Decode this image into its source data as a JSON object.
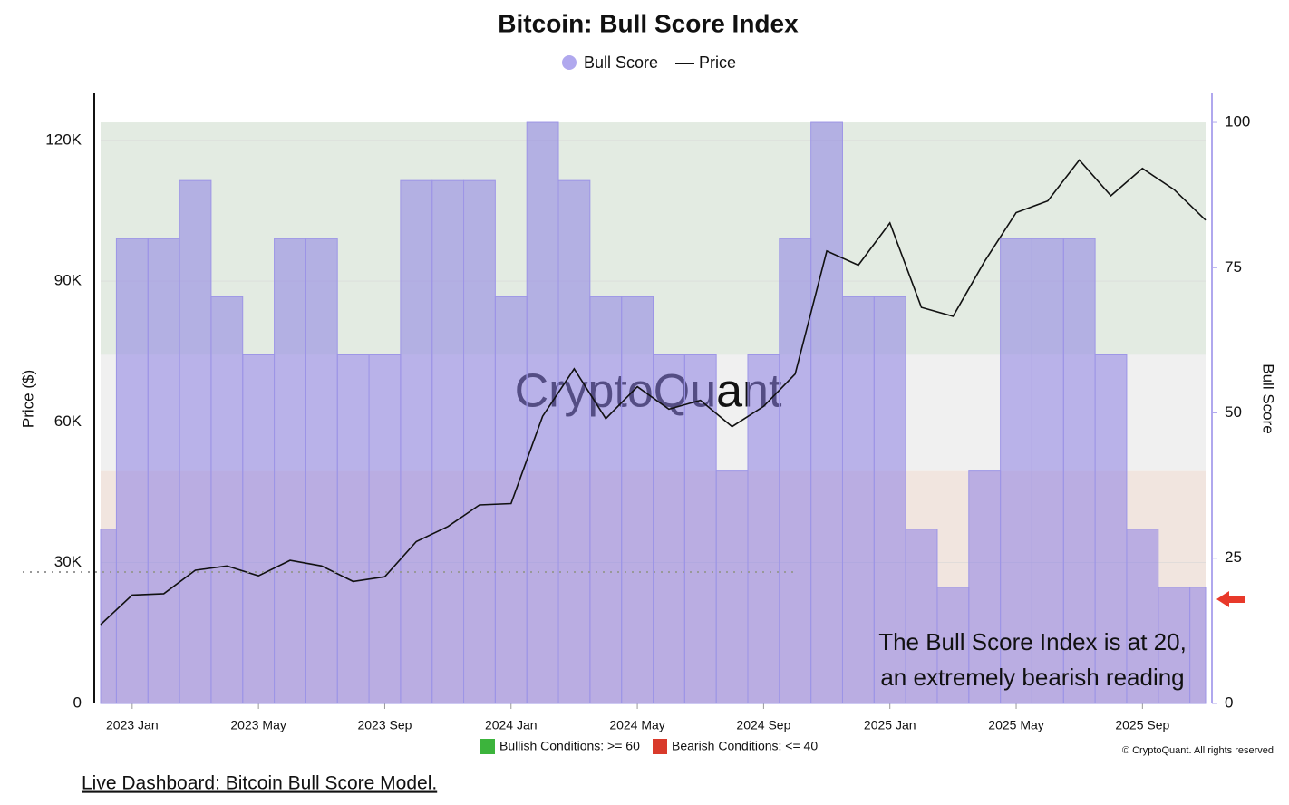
{
  "chart_data": {
    "type": "line",
    "title": "Bitcoin: Bull Score Index",
    "ylabel": "Price ($)",
    "y2label": "Bull Score",
    "watermark": "CryptoQuant",
    "x": [
      "2022-12",
      "2023-01",
      "2023-02",
      "2023-03",
      "2023-04",
      "2023-05",
      "2023-06",
      "2023-07",
      "2023-08",
      "2023-09",
      "2023-10",
      "2023-11",
      "2023-12",
      "2024-01",
      "2024-02",
      "2024-03",
      "2024-04",
      "2024-05",
      "2024-06",
      "2024-07",
      "2024-08",
      "2024-09",
      "2024-10",
      "2024-11",
      "2024-12",
      "2025-01",
      "2025-02",
      "2025-03",
      "2025-04",
      "2025-05",
      "2025-06",
      "2025-07",
      "2025-08",
      "2025-09",
      "2025-10",
      "2025-11"
    ],
    "xlim": [
      "2022-12",
      "2025-11"
    ],
    "xticks": [
      {
        "value": "2023-01",
        "label": "2023 Jan"
      },
      {
        "value": "2023-05",
        "label": "2023 May"
      },
      {
        "value": "2023-09",
        "label": "2023 Sep"
      },
      {
        "value": "2024-01",
        "label": "2024 Jan"
      },
      {
        "value": "2024-05",
        "label": "2024 May"
      },
      {
        "value": "2024-09",
        "label": "2024 Sep"
      },
      {
        "value": "2025-01",
        "label": "2025 Jan"
      },
      {
        "value": "2025-05",
        "label": "2025 May"
      },
      {
        "value": "2025-09",
        "label": "2025 Sep"
      }
    ],
    "ylim": [
      0,
      130000
    ],
    "yticks": [
      0,
      {
        "value": 30000,
        "label": "30K"
      },
      {
        "value": 60000,
        "label": "60K"
      },
      {
        "value": 90000,
        "label": "90K"
      },
      {
        "value": 120000,
        "label": "120K"
      }
    ],
    "y2lim": [
      0,
      105
    ],
    "y2ticks": [
      0,
      25,
      50,
      75,
      100
    ],
    "bands": [
      {
        "from": 60,
        "to": 100,
        "color": "#e3ebe2"
      },
      {
        "from": 40,
        "to": 60,
        "color": "#f0f0f0"
      },
      {
        "from": 0,
        "to": 40,
        "color": "#f1e5df"
      }
    ],
    "series": [
      {
        "name": "Bull Score",
        "color": "#9d95e6",
        "axis": "y2",
        "values": [
          30,
          80,
          80,
          90,
          70,
          60,
          80,
          80,
          60,
          60,
          90,
          90,
          90,
          70,
          100,
          90,
          70,
          70,
          60,
          60,
          40,
          60,
          80,
          100,
          70,
          70,
          30,
          20,
          40,
          80,
          80,
          80,
          60,
          30,
          20,
          20
        ]
      },
      {
        "name": "Price",
        "color": "#111111",
        "axis": "y",
        "values": [
          16800,
          23100,
          23400,
          28400,
          29300,
          27200,
          30500,
          29300,
          26000,
          27000,
          34500,
          37700,
          42300,
          42600,
          61200,
          71300,
          60700,
          67500,
          62700,
          64600,
          59000,
          63300,
          70200,
          96400,
          93400,
          102400,
          84400,
          82500,
          94200,
          104600,
          107100,
          115800,
          108200,
          114000,
          109500,
          103000
        ]
      }
    ],
    "annotations": [
      "The Bull Score Index is at 20,",
      "an extremely bearish reading"
    ]
  },
  "footer": {
    "bullish": "Bullish Conditions: >= 60",
    "bearish": "Bearish Conditions: <= 40",
    "copyright": "© CryptoQuant. All rights reserved",
    "link": "Live Dashboard: Bitcoin Bull Score Model."
  }
}
